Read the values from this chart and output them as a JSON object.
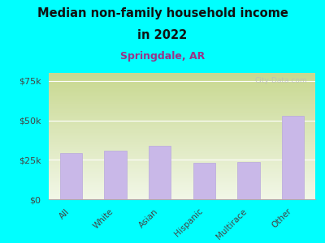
{
  "title_line1": "Median non-family household income",
  "title_line2": "in 2022",
  "subtitle": "Springdale, AR",
  "categories": [
    "All",
    "White",
    "Asian",
    "Hispanic",
    "Multirace",
    "Other"
  ],
  "values": [
    29000,
    31000,
    34000,
    23000,
    23500,
    53000
  ],
  "bar_color": "#c9b8e8",
  "bar_edge_color": "#b8a8dc",
  "bg_color": "#00FFFF",
  "grad_top_color": "#c8d890",
  "grad_bottom_color": "#f2f7e8",
  "title_color": "#111111",
  "subtitle_color": "#993388",
  "ytick_labels": [
    "$0",
    "$25k",
    "$50k",
    "$75k"
  ],
  "ytick_values": [
    0,
    25000,
    50000,
    75000
  ],
  "ylim_max": 80000,
  "watermark": "City-Data.com",
  "watermark_color": "#bbbbbb"
}
